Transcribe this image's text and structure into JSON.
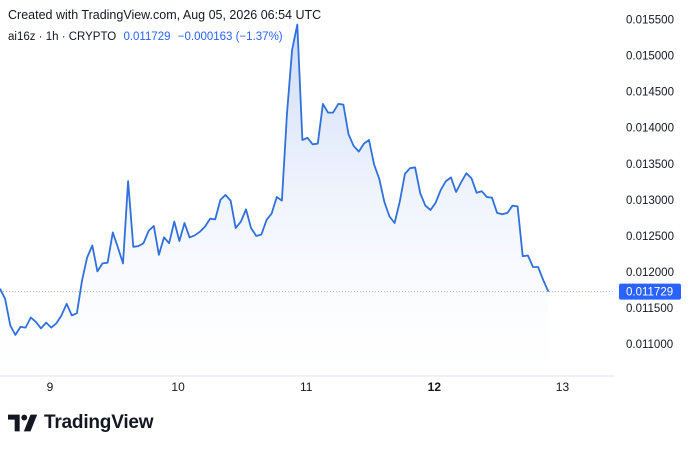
{
  "header": {
    "created_text": "Created with TradingView.com, Aug 05, 2026 06:54 UTC"
  },
  "legend": {
    "symbol_info": "ai16z · 1h · CRYPTO",
    "last_price": "0.011729",
    "change": "−0.000163 (−1.37%)"
  },
  "brand": {
    "name": "TradingView",
    "logo_icon": "tradingview-logo-icon"
  },
  "colors": {
    "line": "#3070dc",
    "fill_top": "#c9d8f7",
    "fill_bottom": "#ffffff",
    "price_tag_bg": "#2962ff",
    "price_tag_text": "#ffffff"
  },
  "chart_data": {
    "type": "area",
    "title": "",
    "xlabel": "",
    "ylabel": "",
    "x_ticks": [
      {
        "label": "9",
        "x": 9.0,
        "bold": false
      },
      {
        "label": "10",
        "x": 10.0,
        "bold": false
      },
      {
        "label": "11",
        "x": 11.0,
        "bold": false
      },
      {
        "label": "12",
        "x": 12.0,
        "bold": true
      },
      {
        "label": "13",
        "x": 13.0,
        "bold": false
      }
    ],
    "y_ticks": [
      "0.015500",
      "0.015000",
      "0.014500",
      "0.014000",
      "0.013500",
      "0.013000",
      "0.012500",
      "0.012000",
      "0.011500",
      "0.011000"
    ],
    "y_tick_values": [
      0.0155,
      0.015,
      0.0145,
      0.014,
      0.0135,
      0.013,
      0.0125,
      0.012,
      0.0115,
      0.011
    ],
    "xlim": [
      8.61,
      13.41
    ],
    "ylim": [
      0.01056,
      0.01577
    ],
    "last_value": 0.011729,
    "last_value_label": "0.011729",
    "series": [
      {
        "values": [
          [
            8.61,
            0.01177
          ],
          [
            8.65,
            0.01163
          ],
          [
            8.69,
            0.01126
          ],
          [
            8.73,
            0.01113
          ],
          [
            8.77,
            0.01124
          ],
          [
            8.81,
            0.01123
          ],
          [
            8.85,
            0.01137
          ],
          [
            8.89,
            0.01131
          ],
          [
            8.93,
            0.01122
          ],
          [
            8.97,
            0.0113
          ],
          [
            9.01,
            0.01123
          ],
          [
            9.05,
            0.01129
          ],
          [
            9.09,
            0.0114
          ],
          [
            9.13,
            0.01156
          ],
          [
            9.17,
            0.0114
          ],
          [
            9.21,
            0.01143
          ],
          [
            9.25,
            0.01188
          ],
          [
            9.29,
            0.0122
          ],
          [
            9.33,
            0.01237
          ],
          [
            9.37,
            0.01201
          ],
          [
            9.41,
            0.01212
          ],
          [
            9.45,
            0.01213
          ],
          [
            9.49,
            0.01255
          ],
          [
            9.53,
            0.01234
          ],
          [
            9.57,
            0.01212
          ],
          [
            9.61,
            0.01326
          ],
          [
            9.65,
            0.01235
          ],
          [
            9.69,
            0.01236
          ],
          [
            9.73,
            0.0124
          ],
          [
            9.77,
            0.01257
          ],
          [
            9.81,
            0.01264
          ],
          [
            9.85,
            0.01224
          ],
          [
            9.89,
            0.01248
          ],
          [
            9.93,
            0.0124
          ],
          [
            9.97,
            0.0127
          ],
          [
            10.01,
            0.01243
          ],
          [
            10.05,
            0.01268
          ],
          [
            10.09,
            0.01248
          ],
          [
            10.13,
            0.01251
          ],
          [
            10.17,
            0.01256
          ],
          [
            10.21,
            0.01263
          ],
          [
            10.25,
            0.01274
          ],
          [
            10.29,
            0.01273
          ],
          [
            10.33,
            0.013
          ],
          [
            10.37,
            0.01307
          ],
          [
            10.41,
            0.01299
          ],
          [
            10.45,
            0.01261
          ],
          [
            10.49,
            0.0127
          ],
          [
            10.53,
            0.01287
          ],
          [
            10.57,
            0.01261
          ],
          [
            10.61,
            0.0125
          ],
          [
            10.65,
            0.01252
          ],
          [
            10.69,
            0.01272
          ],
          [
            10.73,
            0.01281
          ],
          [
            10.77,
            0.01304
          ],
          [
            10.81,
            0.01299
          ],
          [
            10.85,
            0.0142
          ],
          [
            10.89,
            0.01508
          ],
          [
            10.93,
            0.01543
          ],
          [
            10.97,
            0.01383
          ],
          [
            11.01,
            0.01386
          ],
          [
            11.05,
            0.01377
          ],
          [
            11.09,
            0.01378
          ],
          [
            11.13,
            0.01433
          ],
          [
            11.17,
            0.01421
          ],
          [
            11.21,
            0.01421
          ],
          [
            11.25,
            0.01433
          ],
          [
            11.29,
            0.01432
          ],
          [
            11.33,
            0.01391
          ],
          [
            11.37,
            0.01375
          ],
          [
            11.41,
            0.01367
          ],
          [
            11.45,
            0.01378
          ],
          [
            11.49,
            0.01383
          ],
          [
            11.53,
            0.01349
          ],
          [
            11.57,
            0.01329
          ],
          [
            11.61,
            0.01297
          ],
          [
            11.65,
            0.01277
          ],
          [
            11.69,
            0.01268
          ],
          [
            11.73,
            0.01298
          ],
          [
            11.77,
            0.01336
          ],
          [
            11.81,
            0.01344
          ],
          [
            11.85,
            0.01345
          ],
          [
            11.89,
            0.01309
          ],
          [
            11.93,
            0.01292
          ],
          [
            11.97,
            0.01286
          ],
          [
            12.01,
            0.01296
          ],
          [
            12.05,
            0.01314
          ],
          [
            12.09,
            0.01326
          ],
          [
            12.13,
            0.01331
          ],
          [
            12.17,
            0.01311
          ],
          [
            12.21,
            0.01325
          ],
          [
            12.25,
            0.01337
          ],
          [
            12.29,
            0.0133
          ],
          [
            12.33,
            0.0131
          ],
          [
            12.37,
            0.01312
          ],
          [
            12.41,
            0.01304
          ],
          [
            12.45,
            0.01303
          ],
          [
            12.49,
            0.01282
          ],
          [
            12.53,
            0.0128
          ],
          [
            12.57,
            0.01282
          ],
          [
            12.61,
            0.01292
          ],
          [
            12.65,
            0.01291
          ],
          [
            12.69,
            0.01222
          ],
          [
            12.73,
            0.01223
          ],
          [
            12.77,
            0.01207
          ],
          [
            12.81,
            0.01207
          ],
          [
            12.85,
            0.01189
          ],
          [
            12.89,
            0.01173
          ]
        ]
      }
    ],
    "grid": false,
    "legend_position": "top-left"
  }
}
